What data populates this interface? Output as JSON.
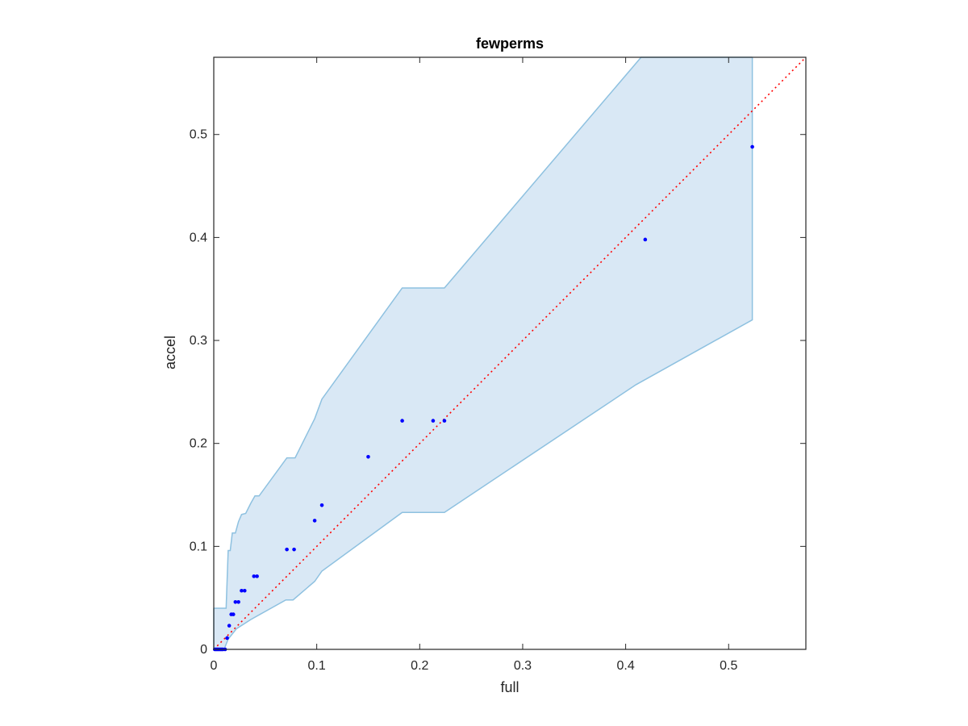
{
  "chart_data": {
    "type": "scatter",
    "title": "fewperms",
    "xlabel": "full",
    "ylabel": "accel",
    "xlim": [
      0,
      0.575
    ],
    "ylim": [
      0,
      0.575
    ],
    "xticks": [
      0,
      0.1,
      0.2,
      0.3,
      0.4,
      0.5
    ],
    "yticks": [
      0,
      0.1,
      0.2,
      0.3,
      0.4,
      0.5
    ],
    "xtick_labels": [
      "0",
      "0.1",
      "0.2",
      "0.3",
      "0.4",
      "0.5"
    ],
    "ytick_labels": [
      "0",
      "0.1",
      "0.2",
      "0.3",
      "0.4",
      "0.5"
    ],
    "grid": false,
    "colors": {
      "points": "#0000ff",
      "band_fill": "#d9e8f5",
      "band_edge": "#8ec1e0",
      "reference_line": "#ff0000"
    },
    "reference_line": {
      "x": [
        0,
        0.575
      ],
      "y": [
        0,
        0.575
      ],
      "style": "dotted"
    },
    "confidence_band": {
      "upper": [
        [
          0,
          0.04
        ],
        [
          0.012,
          0.04
        ],
        [
          0.014,
          0.096
        ],
        [
          0.016,
          0.096
        ],
        [
          0.018,
          0.113
        ],
        [
          0.021,
          0.113
        ],
        [
          0.024,
          0.124
        ],
        [
          0.027,
          0.131
        ],
        [
          0.031,
          0.132
        ],
        [
          0.036,
          0.142
        ],
        [
          0.04,
          0.149
        ],
        [
          0.044,
          0.149
        ],
        [
          0.071,
          0.186
        ],
        [
          0.079,
          0.186
        ],
        [
          0.098,
          0.224
        ],
        [
          0.105,
          0.243
        ],
        [
          0.183,
          0.351
        ],
        [
          0.224,
          0.351
        ],
        [
          0.415,
          0.575
        ],
        [
          0.523,
          0.575
        ]
      ],
      "lower": [
        [
          0,
          0
        ],
        [
          0.01,
          0
        ],
        [
          0.014,
          0.01
        ],
        [
          0.022,
          0.02
        ],
        [
          0.036,
          0.029
        ],
        [
          0.07,
          0.048
        ],
        [
          0.077,
          0.048
        ],
        [
          0.098,
          0.066
        ],
        [
          0.105,
          0.076
        ],
        [
          0.183,
          0.133
        ],
        [
          0.224,
          0.133
        ],
        [
          0.41,
          0.257
        ],
        [
          0.523,
          0.32
        ],
        [
          0.523,
          0.575
        ]
      ]
    },
    "points": [
      {
        "x": 0.001,
        "y": 0
      },
      {
        "x": 0.002,
        "y": 0
      },
      {
        "x": 0.003,
        "y": 0
      },
      {
        "x": 0.004,
        "y": 0
      },
      {
        "x": 0.005,
        "y": 0
      },
      {
        "x": 0.006,
        "y": 0
      },
      {
        "x": 0.007,
        "y": 0
      },
      {
        "x": 0.008,
        "y": 0
      },
      {
        "x": 0.009,
        "y": 0
      },
      {
        "x": 0.011,
        "y": 0
      },
      {
        "x": 0.013,
        "y": 0.011
      },
      {
        "x": 0.015,
        "y": 0.023
      },
      {
        "x": 0.017,
        "y": 0.034
      },
      {
        "x": 0.019,
        "y": 0.034
      },
      {
        "x": 0.021,
        "y": 0.046
      },
      {
        "x": 0.024,
        "y": 0.046
      },
      {
        "x": 0.027,
        "y": 0.057
      },
      {
        "x": 0.03,
        "y": 0.057
      },
      {
        "x": 0.039,
        "y": 0.071
      },
      {
        "x": 0.042,
        "y": 0.071
      },
      {
        "x": 0.071,
        "y": 0.097
      },
      {
        "x": 0.078,
        "y": 0.097
      },
      {
        "x": 0.098,
        "y": 0.125
      },
      {
        "x": 0.105,
        "y": 0.14
      },
      {
        "x": 0.15,
        "y": 0.187
      },
      {
        "x": 0.183,
        "y": 0.222
      },
      {
        "x": 0.213,
        "y": 0.222
      },
      {
        "x": 0.224,
        "y": 0.222
      },
      {
        "x": 0.419,
        "y": 0.398
      },
      {
        "x": 0.523,
        "y": 0.488
      }
    ]
  }
}
